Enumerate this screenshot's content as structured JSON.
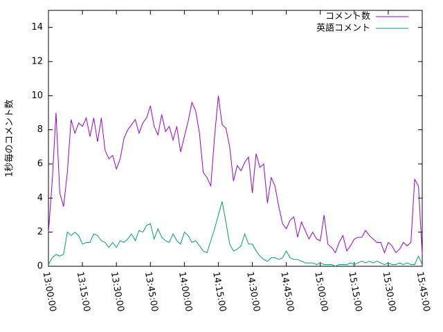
{
  "chart_data": {
    "type": "line",
    "ylabel": "1秒毎のコメント数",
    "x": [
      "13:00:00",
      "13:01:40",
      "13:03:20",
      "13:05:00",
      "13:06:40",
      "13:08:20",
      "13:10:00",
      "13:11:40",
      "13:13:20",
      "13:15:00",
      "13:16:40",
      "13:18:20",
      "13:20:00",
      "13:21:40",
      "13:23:20",
      "13:25:00",
      "13:26:40",
      "13:28:20",
      "13:30:00",
      "13:31:40",
      "13:33:20",
      "13:35:00",
      "13:36:40",
      "13:38:20",
      "13:40:00",
      "13:41:40",
      "13:43:20",
      "13:45:00",
      "13:46:40",
      "13:48:20",
      "13:50:00",
      "13:51:40",
      "13:53:20",
      "13:55:00",
      "13:56:40",
      "13:58:20",
      "14:00:00",
      "14:01:40",
      "14:03:20",
      "14:05:00",
      "14:06:40",
      "14:08:20",
      "14:10:00",
      "14:11:40",
      "14:13:20",
      "14:15:00",
      "14:16:40",
      "14:18:20",
      "14:20:00",
      "14:21:40",
      "14:23:20",
      "14:25:00",
      "14:26:40",
      "14:28:20",
      "14:30:00",
      "14:31:40",
      "14:33:20",
      "14:35:00",
      "14:36:40",
      "14:38:20",
      "14:40:00",
      "14:41:40",
      "14:43:20",
      "14:45:00",
      "14:46:40",
      "14:48:20",
      "14:50:00",
      "14:51:40",
      "14:53:20",
      "14:55:00",
      "14:56:40",
      "14:58:20",
      "15:00:00",
      "15:01:40",
      "15:03:20",
      "15:05:00",
      "15:06:40",
      "15:08:20",
      "15:10:00",
      "15:11:40",
      "15:13:20",
      "15:15:00",
      "15:16:40",
      "15:18:20",
      "15:20:00",
      "15:21:40",
      "15:23:20",
      "15:25:00",
      "15:26:40",
      "15:28:20",
      "15:30:00",
      "15:31:40",
      "15:33:20",
      "15:35:00",
      "15:36:40",
      "15:38:20",
      "15:40:00",
      "15:41:40",
      "15:43:20",
      "15:45:00"
    ],
    "series": [
      {
        "name": "コメント数",
        "color": "#9400d3",
        "values": [
          2.0,
          5.0,
          9.0,
          4.3,
          3.5,
          5.5,
          8.6,
          7.8,
          8.4,
          8.2,
          8.7,
          7.6,
          8.7,
          7.3,
          8.7,
          6.8,
          6.3,
          6.5,
          5.7,
          6.3,
          7.5,
          8.0,
          8.3,
          8.6,
          7.8,
          8.4,
          8.7,
          9.4,
          8.2,
          7.7,
          8.9,
          7.9,
          8.2,
          7.4,
          8.2,
          6.7,
          7.6,
          8.5,
          9.6,
          9.1,
          7.8,
          5.5,
          5.2,
          4.7,
          7.6,
          10.0,
          8.3,
          8.1,
          7.0,
          5.0,
          5.9,
          5.6,
          6.1,
          6.4,
          4.3,
          6.6,
          5.8,
          6.0,
          3.7,
          5.2,
          4.7,
          3.5,
          2.5,
          2.2,
          2.7,
          2.9,
          1.7,
          2.6,
          2.1,
          1.6,
          2.0,
          1.6,
          1.5,
          3.0,
          1.3,
          1.1,
          0.8,
          1.4,
          1.8,
          0.9,
          1.2,
          1.6,
          1.7,
          1.7,
          2.1,
          1.8,
          1.6,
          1.4,
          1.4,
          0.8,
          1.4,
          1.2,
          0.8,
          1.0,
          1.4,
          1.2,
          1.4,
          5.1,
          4.7,
          0.7
        ]
      },
      {
        "name": "英語コメント",
        "color": "#009e73",
        "values": [
          0.1,
          0.5,
          0.7,
          0.6,
          0.7,
          2.0,
          1.8,
          2.0,
          1.8,
          1.3,
          1.4,
          1.4,
          1.9,
          1.8,
          1.5,
          1.4,
          1.1,
          1.4,
          1.1,
          1.5,
          1.4,
          1.6,
          1.9,
          1.5,
          2.1,
          2.0,
          2.4,
          2.5,
          1.6,
          2.2,
          1.7,
          1.5,
          1.4,
          1.9,
          1.5,
          1.3,
          2.0,
          1.8,
          1.4,
          1.5,
          1.2,
          0.9,
          0.8,
          1.5,
          2.2,
          3.0,
          3.8,
          2.6,
          1.3,
          0.9,
          1.0,
          1.2,
          1.9,
          1.3,
          1.3,
          0.9,
          0.6,
          0.4,
          0.3,
          0.5,
          0.5,
          0.4,
          0.5,
          0.9,
          0.5,
          0.4,
          0.4,
          0.3,
          0.2,
          0.2,
          0.2,
          0.1,
          0.2,
          0.1,
          0.1,
          0.1,
          0.0,
          0.1,
          0.1,
          0.1,
          0.2,
          0.1,
          0.2,
          0.3,
          0.2,
          0.3,
          0.2,
          0.3,
          0.2,
          0.1,
          0.2,
          0.1,
          0.1,
          0.2,
          0.1,
          0.2,
          0.1,
          0.1,
          0.6,
          0.1
        ]
      }
    ],
    "xlim": [
      "13:00:00",
      "15:45:00"
    ],
    "xticks": [
      "13:00:00",
      "13:15:00",
      "13:30:00",
      "13:45:00",
      "14:00:00",
      "14:15:00",
      "14:30:00",
      "14:45:00",
      "15:00:00",
      "15:15:00",
      "15:30:00",
      "15:45:00"
    ],
    "ylim": [
      0,
      15
    ],
    "yticks": [
      0,
      2,
      4,
      6,
      8,
      10,
      12,
      14
    ],
    "legend": "top-right"
  }
}
